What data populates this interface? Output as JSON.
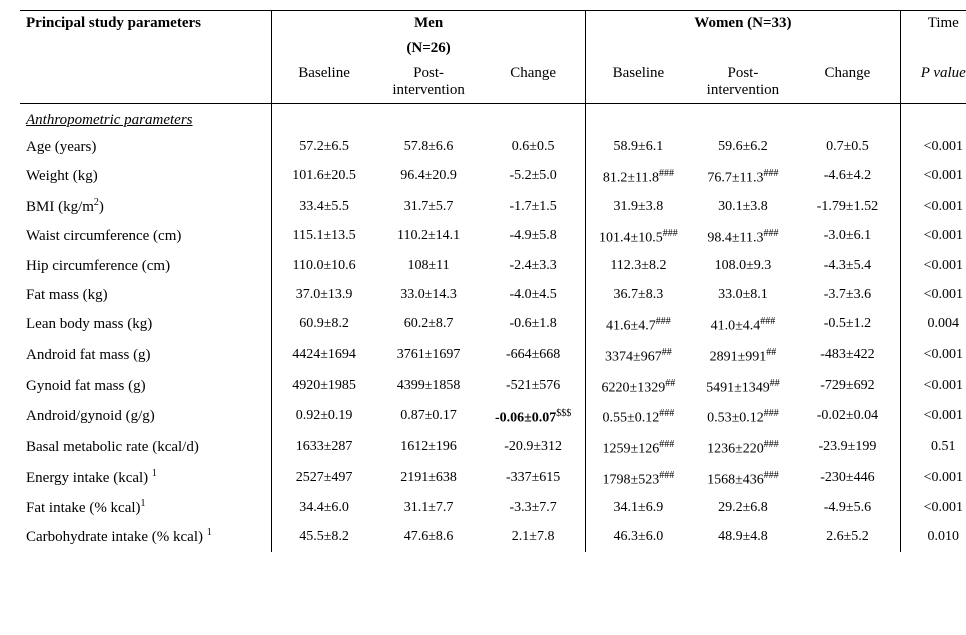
{
  "header": {
    "param_label": "Principal study parameters",
    "men_group": "Men",
    "men_n": "(N=26)",
    "women_group": "Women (N=33)",
    "time_label": "Time",
    "baseline": "Baseline",
    "post": "Post-",
    "intervention": "intervention",
    "change": "Change",
    "pvalue": "P value"
  },
  "section": "Anthropometric parameters",
  "rows": [
    {
      "label": "Age (years)",
      "m_b": "57.2±6.5",
      "m_p": "57.8±6.6",
      "m_c": "0.6±0.5",
      "w_b": "58.9±6.1",
      "w_p": "59.6±6.2",
      "w_c": "0.7±0.5",
      "p": "<0.001"
    },
    {
      "label": "Weight (kg)",
      "m_b": "101.6±20.5",
      "m_p": "96.4±20.9",
      "m_c": "-5.2±5.0",
      "w_b": "81.2±11.8",
      "w_b_sup": "###",
      "w_p": "76.7±11.3",
      "w_p_sup": "###",
      "w_c": "-4.6±4.2",
      "p": "<0.001"
    },
    {
      "label_html": "BMI (kg/m<sup>2</sup>)",
      "m_b": "33.4±5.5",
      "m_p": "31.7±5.7",
      "m_c": "-1.7±1.5",
      "w_b": "31.9±3.8",
      "w_p": "30.1±3.8",
      "w_c": "-1.79±1.52",
      "p": "<0.001"
    },
    {
      "label": "Waist circumference (cm)",
      "m_b": "115.1±13.5",
      "m_p": "110.2±14.1",
      "m_c": "-4.9±5.8",
      "w_b": "101.4±10.5",
      "w_b_sup": "###",
      "w_p": "98.4±11.3",
      "w_p_sup": "###",
      "w_c": "-3.0±6.1",
      "p": "<0.001"
    },
    {
      "label": "Hip circumference (cm)",
      "m_b": "110.0±10.6",
      "m_p": "108±11",
      "m_c": "-2.4±3.3",
      "w_b": "112.3±8.2",
      "w_p": "108.0±9.3",
      "w_c": "-4.3±5.4",
      "p": "<0.001"
    },
    {
      "label": "Fat mass (kg)",
      "m_b": "37.0±13.9",
      "m_p": "33.0±14.3",
      "m_c": "-4.0±4.5",
      "w_b": "36.7±8.3",
      "w_p": "33.0±8.1",
      "w_c": "-3.7±3.6",
      "p": "<0.001"
    },
    {
      "label": "Lean body mass (kg)",
      "m_b": "60.9±8.2",
      "m_p": "60.2±8.7",
      "m_c": "-0.6±1.8",
      "w_b": "41.6±4.7",
      "w_b_sup": "###",
      "w_p": "41.0±4.4",
      "w_p_sup": "###",
      "w_c": "-0.5±1.2",
      "p": "0.004"
    },
    {
      "label": "Android fat mass (g)",
      "m_b": "4424±1694",
      "m_p": "3761±1697",
      "m_c": "-664±668",
      "w_b": "3374±967",
      "w_b_sup": "##",
      "w_p": "2891±991",
      "w_p_sup": "##",
      "w_c": "-483±422",
      "p": "<0.001"
    },
    {
      "label": "Gynoid fat mass (g)",
      "m_b": "4920±1985",
      "m_p": "4399±1858",
      "m_c": "-521±576",
      "w_b": "6220±1329",
      "w_b_sup": "##",
      "w_p": "5491±1349",
      "w_p_sup": "##",
      "w_c": "-729±692",
      "p": "<0.001"
    },
    {
      "label": "Android/gynoid (g/g)",
      "m_b": "0.92±0.19",
      "m_p": "0.87±0.17",
      "m_c": "-0.06±0.07",
      "m_c_bold": true,
      "m_c_sup": "$$$",
      "w_b": "0.55±0.12",
      "w_b_sup": "###",
      "w_p": "0.53±0.12",
      "w_p_sup": "###",
      "w_c": "-0.02±0.04",
      "p": "<0.001"
    },
    {
      "label": "Basal metabolic rate (kcal/d)",
      "m_b": "1633±287",
      "m_p": "1612±196",
      "m_c": "-20.9±312",
      "w_b": "1259±126",
      "w_b_sup": "###",
      "w_p": "1236±220",
      "w_p_sup": "###",
      "w_c": "-23.9±199",
      "p": "0.51"
    },
    {
      "label_html": "Energy intake (kcal) <sup>1</sup>",
      "m_b": "2527±497",
      "m_p": "2191±638",
      "m_c": "-337±615",
      "w_b": "1798±523",
      "w_b_sup": "###",
      "w_p": "1568±436",
      "w_p_sup": "###",
      "w_c": "-230±446",
      "p": "<0.001"
    },
    {
      "label_html": "Fat intake (% kcal)<sup>1</sup>",
      "m_b": "34.4±6.0",
      "m_p": "31.1±7.7",
      "m_c": "-3.3±7.7",
      "w_b": "34.1±6.9",
      "w_p": "29.2±6.8",
      "w_c": "-4.9±5.6",
      "p": "<0.001"
    },
    {
      "label_html": "Carbohydrate intake (% kcal) <sup>1</sup>",
      "m_b": "45.5±8.2",
      "m_p": "47.6±8.6",
      "m_c": "2.1±7.8",
      "w_b": "46.3±6.0",
      "w_p": "48.9±4.8",
      "w_c": "2.6±5.2",
      "p": "0.010"
    }
  ],
  "style": {
    "font_family": "Times New Roman",
    "header_font_size_pt": 15,
    "body_font_size_pt": 14,
    "text_color": "#000000",
    "background_color": "#ffffff",
    "border_color": "#000000"
  }
}
